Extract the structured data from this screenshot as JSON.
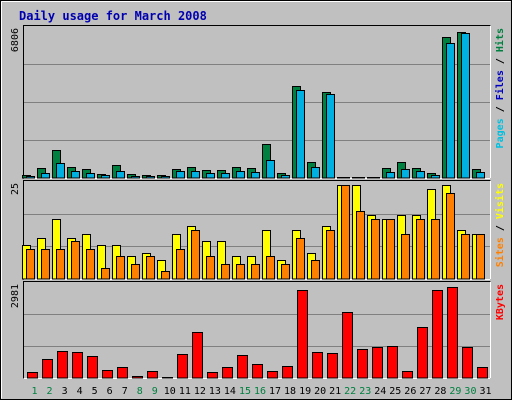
{
  "chart_data": {
    "title": "Daily usage for March 2008",
    "type": "bar",
    "days": [
      "1",
      "2",
      "3",
      "4",
      "5",
      "6",
      "7",
      "8",
      "9",
      "10",
      "11",
      "12",
      "13",
      "14",
      "15",
      "16",
      "17",
      "18",
      "19",
      "20",
      "21",
      "22",
      "23",
      "24",
      "25",
      "26",
      "27",
      "28",
      "29",
      "30",
      "31"
    ],
    "weekend_days": [
      1,
      2,
      8,
      9,
      15,
      16,
      22,
      23,
      29,
      30
    ],
    "colors": {
      "background": "#C0C0C0",
      "plot": "#C0C0C0",
      "title": "#0000B0",
      "weekday_label": "#000000",
      "weekend_label": "#008040",
      "hits": "#008040",
      "files": "#00B0E0",
      "pages": "#00C0E0",
      "sites": "#FF8000",
      "visits": "#FFFF00",
      "kbytes": "#FF0000",
      "slash": "#000000"
    },
    "panels": [
      {
        "key": "hits",
        "scale_label": "6806",
        "legend": [
          {
            "text": "Pages",
            "color": "#00C0E0"
          },
          {
            "text": " / ",
            "color": "#000000"
          },
          {
            "text": "Files",
            "color": "#0000C0"
          },
          {
            "text": " / ",
            "color": "#000000"
          },
          {
            "text": "Hits",
            "color": "#008040"
          }
        ],
        "max": 6806,
        "series": [
          {
            "name": "Hits",
            "color": "#008040",
            "values": [
              120,
              450,
              1280,
              500,
              420,
              200,
              580,
              180,
              140,
              160,
              420,
              500,
              370,
              350,
              500,
              480,
              1550,
              220,
              4250,
              720,
              3950,
              60,
              60,
              60,
              440,
              720,
              470,
              240,
              6500,
              6700,
              420
            ]
          },
          {
            "name": "Files",
            "color": "#00B0E0",
            "values": [
              90,
              250,
              700,
              340,
              250,
              130,
              300,
              110,
              90,
              100,
              300,
              320,
              220,
              210,
              300,
              290,
              820,
              140,
              4050,
              500,
              3850,
              40,
              40,
              40,
              260,
              420,
              300,
              150,
              6200,
              6650,
              260
            ]
          }
        ]
      },
      {
        "key": "visits",
        "scale_label": "25",
        "legend": [
          {
            "text": "Sites",
            "color": "#FF8000"
          },
          {
            "text": " / ",
            "color": "#000000"
          },
          {
            "text": "Visits",
            "color": "#FFFF00"
          }
        ],
        "max": 25,
        "series": [
          {
            "name": "Visits",
            "color": "#FFFF00",
            "values": [
              9,
              11,
              16,
              11,
              12,
              9,
              9,
              6,
              7,
              5,
              12,
              14,
              10,
              10,
              6,
              6,
              13,
              5,
              13,
              7,
              14,
              25,
              25,
              17,
              16,
              17,
              17,
              24,
              25,
              13,
              12
            ]
          },
          {
            "name": "Sites",
            "color": "#FF8000",
            "values": [
              8,
              8,
              8,
              10,
              8,
              3,
              6,
              4,
              6,
              2,
              8,
              13,
              6,
              4,
              4,
              4,
              6,
              4,
              11,
              5,
              13,
              25,
              18,
              16,
              16,
              12,
              16,
              16,
              23,
              12,
              12
            ]
          }
        ]
      },
      {
        "key": "kbytes",
        "scale_label": "2981",
        "legend": [
          {
            "text": "KBytes",
            "color": "#FF0000"
          }
        ],
        "max": 2981,
        "series": [
          {
            "name": "KBytes",
            "color": "#FF0000",
            "values": [
              180,
              600,
              880,
              840,
              700,
              250,
              350,
              60,
              240,
              40,
              770,
              1500,
              200,
              370,
              740,
              450,
              230,
              380,
              2850,
              840,
              800,
              2150,
              950,
              1000,
              1040,
              230,
              1650,
              2850,
              2960,
              1000,
              350
            ]
          }
        ]
      }
    ]
  }
}
